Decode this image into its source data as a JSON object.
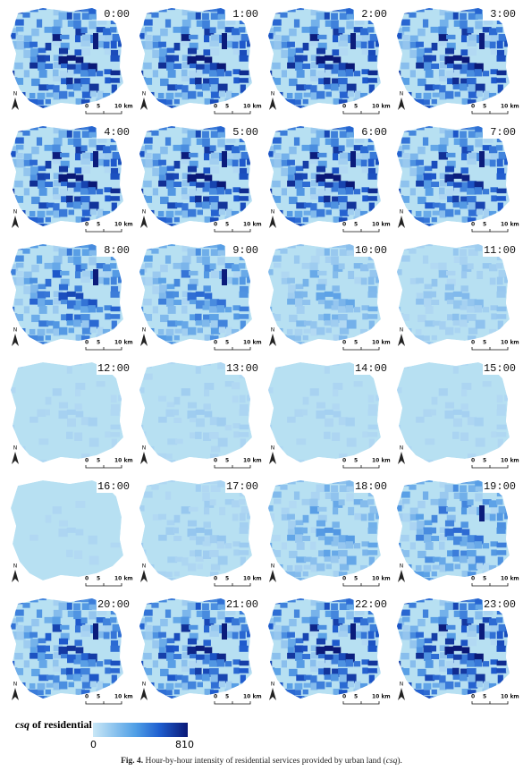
{
  "panels": [
    {
      "label": "0:00"
    },
    {
      "label": "1:00"
    },
    {
      "label": "2:00"
    },
    {
      "label": "3:00"
    },
    {
      "label": "4:00"
    },
    {
      "label": "5:00"
    },
    {
      "label": "6:00"
    },
    {
      "label": "7:00"
    },
    {
      "label": "8:00"
    },
    {
      "label": "9:00"
    },
    {
      "label": "10:00"
    },
    {
      "label": "11:00"
    },
    {
      "label": "12:00"
    },
    {
      "label": "13:00"
    },
    {
      "label": "14:00"
    },
    {
      "label": "15:00"
    },
    {
      "label": "16:00"
    },
    {
      "label": "17:00"
    },
    {
      "label": "18:00"
    },
    {
      "label": "19:00"
    },
    {
      "label": "20:00"
    },
    {
      "label": "21:00"
    },
    {
      "label": "22:00"
    },
    {
      "label": "23:00"
    }
  ],
  "scale_bar": {
    "ticks": [
      "0",
      "5",
      "10 km"
    ]
  },
  "north_label": "N",
  "legend": {
    "title_italic": "csq",
    "title_rest": " of residential",
    "min": 0,
    "max": 810
  },
  "caption": {
    "label": "Fig. 4.",
    "text": " Hour-by-hour intensity of residential services provided by urban land (",
    "italic": "csq",
    "end": ")."
  }
}
